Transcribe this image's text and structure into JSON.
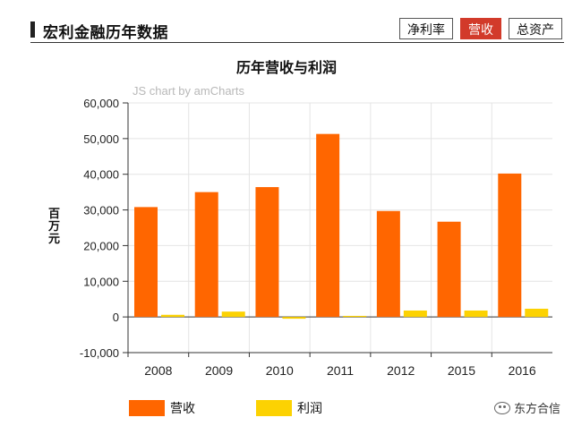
{
  "header": {
    "title": "宏利金融历年数据",
    "tabs": [
      {
        "label": "净利率",
        "active": false
      },
      {
        "label": "营收",
        "active": true
      },
      {
        "label": "总资产",
        "active": false
      }
    ]
  },
  "watermark": "东方合信",
  "colors": {
    "revenue": "#ff6600",
    "profit": "#fcd202",
    "tab_active": "#d23a2a"
  },
  "chart_data": {
    "type": "bar",
    "title": "历年营收与利润",
    "credit": "JS chart by amCharts",
    "xlabel": "",
    "ylabel": "百万元",
    "categories": [
      "2008",
      "2009",
      "2010",
      "2011",
      "2012",
      "2015",
      "2016"
    ],
    "ylim": [
      -10000,
      60000
    ],
    "yticks": [
      -10000,
      0,
      10000,
      20000,
      30000,
      40000,
      50000,
      60000
    ],
    "ytick_labels": [
      "-10,000",
      "0",
      "10,000",
      "20,000",
      "30,000",
      "40,000",
      "50,000",
      "60,000"
    ],
    "grid": true,
    "legend_position": "bottom",
    "series": [
      {
        "name": "营收",
        "values": [
          30800,
          35000,
          36400,
          51300,
          29700,
          26700,
          40200
        ]
      },
      {
        "name": "利润",
        "values": [
          600,
          1500,
          -500,
          300,
          1800,
          1800,
          2300
        ]
      }
    ]
  }
}
